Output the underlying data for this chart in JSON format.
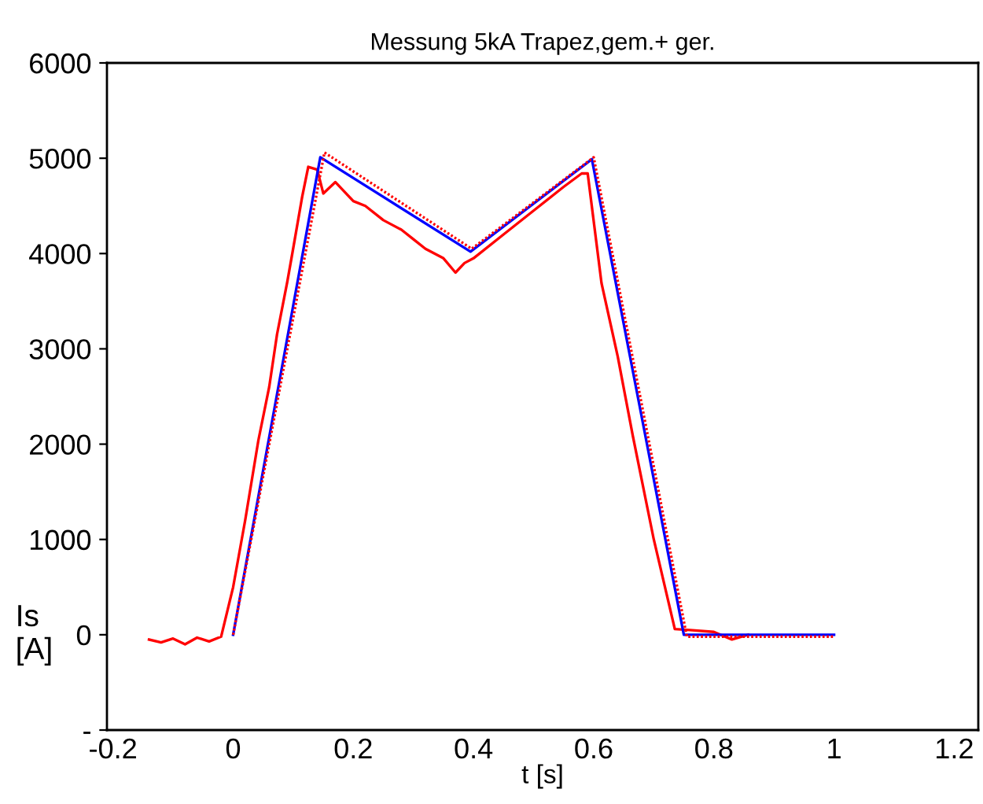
{
  "chart_data": {
    "type": "line",
    "title": "Messung 5kA Trapez,gem.+ ger.",
    "xlabel": "t [s]",
    "ylabel": "Is\n[A]",
    "xlim": [
      -0.21,
      1.24
    ],
    "xticks": [
      -0.2,
      0,
      0.2,
      0.4,
      0.6,
      0.8,
      1,
      1.2
    ],
    "ylim": [
      -1000,
      6000
    ],
    "yticks": [
      {
        "value": -1000,
        "label": "-"
      },
      0,
      1000,
      2000,
      3000,
      4000,
      5000,
      6000
    ],
    "grid": false,
    "legend": false,
    "series": [
      {
        "color": "#ff0000",
        "line_style": "solid",
        "x": [
          -0.14,
          -0.12,
          -0.1,
          -0.08,
          -0.06,
          -0.04,
          -0.02,
          0.0,
          0.02,
          0.042,
          0.06,
          0.073,
          0.09,
          0.099,
          0.115,
          0.125,
          0.14,
          0.15,
          0.17,
          0.2,
          0.22,
          0.25,
          0.28,
          0.3,
          0.32,
          0.35,
          0.37,
          0.385,
          0.4,
          0.45,
          0.5,
          0.55,
          0.58,
          0.59,
          0.613,
          0.64,
          0.665,
          0.7,
          0.735,
          0.76,
          0.8,
          0.83,
          0.857
        ],
        "values": [
          -50,
          -80,
          -40,
          -100,
          -30,
          -70,
          -20,
          500,
          1200,
          2040,
          2600,
          3150,
          3700,
          4020,
          4600,
          4910,
          4880,
          4630,
          4750,
          4550,
          4500,
          4350,
          4250,
          4150,
          4050,
          3950,
          3800,
          3900,
          3950,
          4200,
          4450,
          4700,
          4840,
          4840,
          3690,
          2920,
          2090,
          1000,
          60,
          50,
          30,
          -50,
          0
        ]
      },
      {
        "color": "#ff0000",
        "line_style": "dotted",
        "x": [
          0.0,
          0.152,
          0.397,
          0.6,
          0.755,
          1.0
        ],
        "values": [
          0,
          5060,
          4050,
          5010,
          -20,
          -20
        ]
      },
      {
        "color": "#0000ff",
        "line_style": "solid",
        "x": [
          0.0,
          0.145,
          0.395,
          0.597,
          0.75,
          1.0
        ],
        "values": [
          0,
          5010,
          4020,
          4990,
          0,
          0
        ]
      }
    ]
  }
}
